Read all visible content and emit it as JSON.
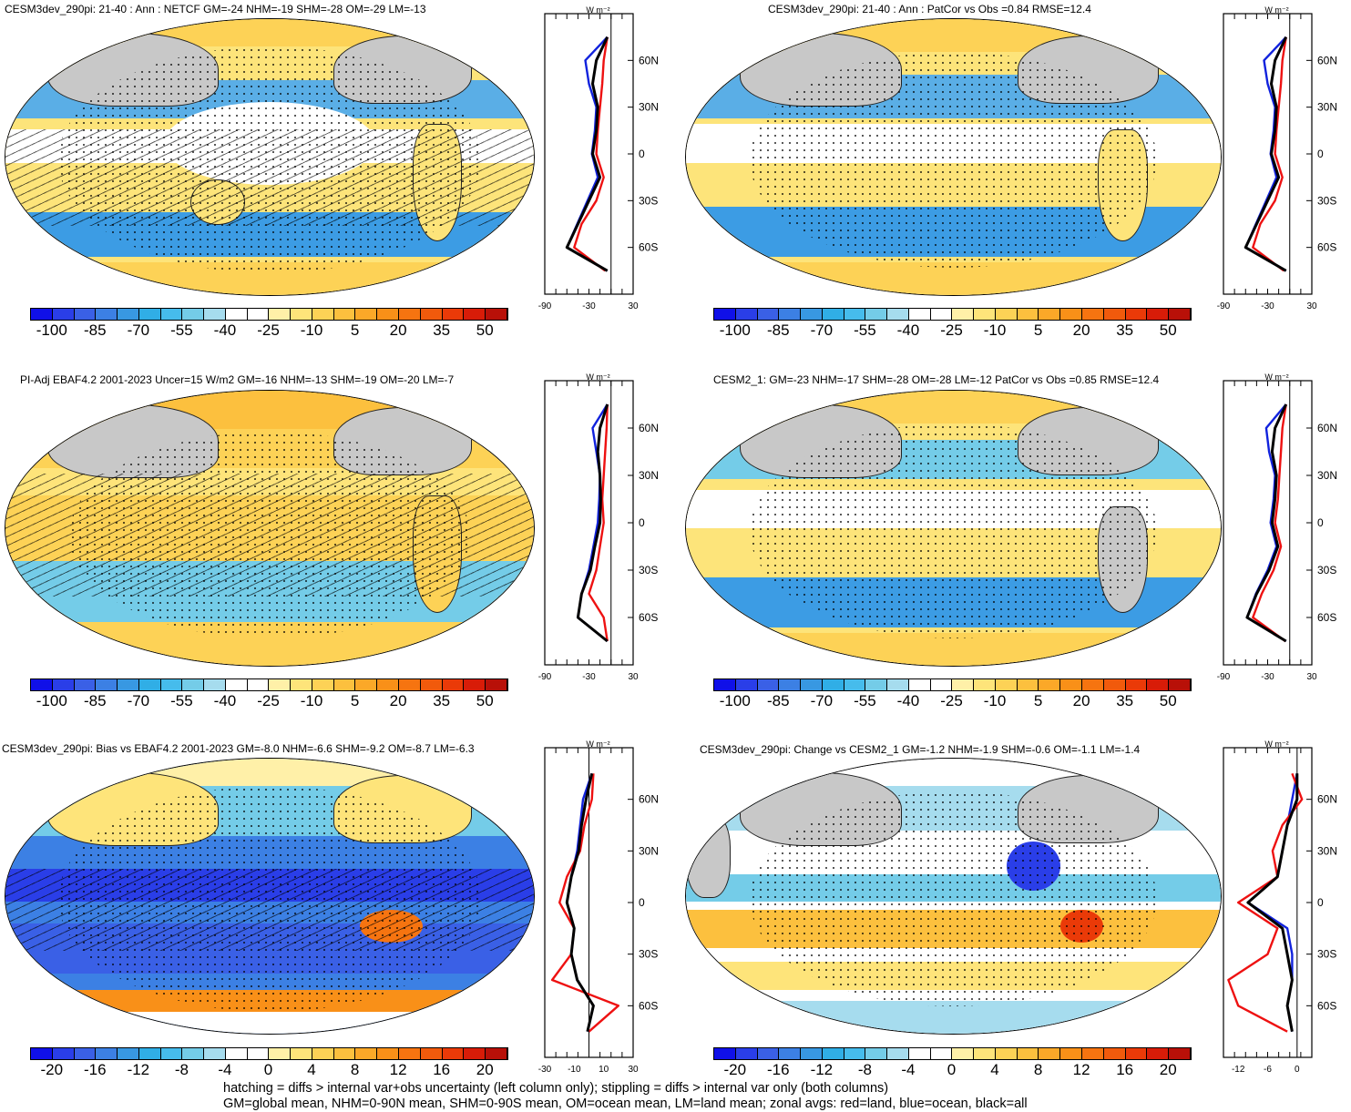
{
  "panels": [
    {
      "title": "CESM3dev_290pi: 21-40 : Ann : NETCF GM=-24 NHM=-19 SHM=-28 OM=-29 LM=-13"
    },
    {
      "title": "CESM3dev_290pi: 21-40 : Ann : PatCor vs Obs =0.84 RMSE=12.4"
    },
    {
      "title": "PI-Adj EBAF4.2 2001-2023 Uncer=15 W/m2 GM=-16 NHM=-13 SHM=-19 OM=-20 LM=-7"
    },
    {
      "title": "CESM2_1: GM=-23 NHM=-17 SHM=-28 OM=-28 LM=-12 PatCor vs Obs =0.85 RMSE=12.4"
    },
    {
      "title": "CESM3dev_290pi: Bias vs EBAF4.2 2001-2023 GM=-8.0 NHM=-6.6 SHM=-9.2 OM=-8.7 LM=-6.3"
    },
    {
      "title": "CESM3dev_290pi: Change vs CESM2_1 GM=-1.2 NHM=-1.9 SHM=-0.6 OM=-1.1 LM=-1.4"
    }
  ],
  "zonal": {
    "unit": "W m⁻²",
    "lat_labels": [
      "60N",
      "30N",
      "0",
      "30S",
      "60S"
    ],
    "x_ticks_full": [
      "-90",
      "-30",
      "30"
    ],
    "x_ticks_bias": [
      "-30",
      "-10",
      "10",
      "30"
    ],
    "x_ticks_change": [
      "-12",
      "-6",
      "0"
    ],
    "colors": {
      "land": "#ee1111",
      "ocean": "#1122dd",
      "all": "#000000"
    }
  },
  "colorbar_full": {
    "labels": [
      "-100",
      "-85",
      "-70",
      "-55",
      "-40",
      "-25",
      "-10",
      "5",
      "20",
      "35",
      "50"
    ],
    "colors": [
      "#1010e8",
      "#2a3ee8",
      "#3a60e6",
      "#3c80e4",
      "#3898e2",
      "#30aee6",
      "#46bcec",
      "#74cce8",
      "#a6dcee",
      "#ffffff",
      "#ffffff",
      "#fff0a8",
      "#fee47a",
      "#fdd256",
      "#fcc03e",
      "#fba828",
      "#f99018",
      "#f67410",
      "#f15a0c",
      "#ea3a08",
      "#d81c08",
      "#b81008"
    ]
  },
  "colorbar_diff": {
    "labels": [
      "-20",
      "-16",
      "-12",
      "-8",
      "-4",
      "0",
      "4",
      "8",
      "12",
      "16",
      "20"
    ],
    "colors": [
      "#1010e8",
      "#2a3ee8",
      "#3a60e6",
      "#3c80e4",
      "#3898e2",
      "#30aee6",
      "#46bcec",
      "#74cce8",
      "#a6dcee",
      "#ffffff",
      "#ffffff",
      "#fff0a8",
      "#fee47a",
      "#fdd256",
      "#fcc03e",
      "#fba828",
      "#f99018",
      "#f67410",
      "#f15a0c",
      "#ea3a08",
      "#d81c08",
      "#b81008"
    ]
  },
  "footnotes": {
    "line1": "hatching = diffs > internal var+obs uncertainty (left column only); stippling = diffs > internal var only (both columns)",
    "line2": "GM=global mean, NHM=0-90N mean, SHM=0-90S mean, OM=ocean mean, LM=land mean; zonal avgs: red=land, blue=ocean, black=all"
  },
  "chart_data": {
    "type": "heatmap",
    "variable": "NETCF",
    "panels": [
      {
        "title": "CESM3dev_290pi: 21-40 : Ann : NETCF",
        "GM": -24,
        "NHM": -19,
        "SHM": -28,
        "OM": -29,
        "LM": -13
      },
      {
        "title": "CESM3dev_290pi: 21-40 : Ann",
        "PatCor": 0.84,
        "RMSE": 12.4
      },
      {
        "title": "PI-Adj EBAF4.2 2001-2023",
        "Uncer": 15,
        "GM": -16,
        "NHM": -13,
        "SHM": -19,
        "OM": -20,
        "LM": -7
      },
      {
        "title": "CESM2_1",
        "GM": -23,
        "NHM": -17,
        "SHM": -28,
        "OM": -28,
        "LM": -12,
        "PatCor": 0.85,
        "RMSE": 12.4
      },
      {
        "title": "CESM3dev_290pi: Bias vs EBAF4.2 2001-2023",
        "GM": -8.0,
        "NHM": -6.6,
        "SHM": -9.2,
        "OM": -8.7,
        "LM": -6.3
      },
      {
        "title": "CESM3dev_290pi: Change vs CESM2_1",
        "GM": -1.2,
        "NHM": -1.9,
        "SHM": -0.6,
        "OM": -1.1,
        "LM": -1.4
      }
    ],
    "colorbar_levels_full": [
      -100,
      -85,
      -70,
      -55,
      -40,
      -25,
      -10,
      5,
      20,
      35,
      50
    ],
    "colorbar_levels_diff": [
      -20,
      -16,
      -12,
      -8,
      -4,
      0,
      4,
      8,
      12,
      16,
      20
    ],
    "zonal_lat": [
      75,
      60,
      45,
      30,
      15,
      0,
      -15,
      -30,
      -45,
      -60,
      -75
    ],
    "zonal_profiles": [
      {
        "all": [
          -5,
          -20,
          -25,
          -18,
          -20,
          -25,
          -15,
          -30,
          -45,
          -60,
          -5
        ],
        "land": [
          -5,
          -10,
          -12,
          -15,
          -18,
          -20,
          -10,
          -20,
          -40,
          -50,
          -8
        ],
        "ocean": [
          -5,
          -35,
          -30,
          -20,
          -22,
          -26,
          -18,
          -32,
          -46,
          -60,
          -5
        ]
      },
      {
        "all": [
          -5,
          -20,
          -25,
          -18,
          -20,
          -25,
          -15,
          -30,
          -45,
          -60,
          -5
        ],
        "land": [
          -5,
          -10,
          -12,
          -15,
          -18,
          -20,
          -10,
          -20,
          -40,
          -50,
          -8
        ],
        "ocean": [
          -5,
          -35,
          -30,
          -20,
          -22,
          -26,
          -18,
          -32,
          -46,
          -60,
          -5
        ]
      },
      {
        "all": [
          -5,
          -15,
          -18,
          -15,
          -14,
          -15,
          -22,
          -28,
          -40,
          -45,
          -5
        ],
        "land": [
          -5,
          -6,
          -8,
          -10,
          -12,
          -10,
          -15,
          -20,
          -30,
          -10,
          -5
        ],
        "ocean": [
          -5,
          -25,
          -20,
          -15,
          -16,
          -18,
          -24,
          -30,
          -40,
          -45,
          -5
        ]
      },
      {
        "all": [
          -5,
          -20,
          -24,
          -18,
          -20,
          -24,
          -16,
          -28,
          -45,
          -58,
          -5
        ],
        "land": [
          -5,
          -10,
          -12,
          -14,
          -16,
          -20,
          -12,
          -22,
          -38,
          -50,
          -6
        ],
        "ocean": [
          -5,
          -32,
          -28,
          -20,
          -22,
          -26,
          -18,
          -30,
          -46,
          -58,
          -5
        ]
      },
      {
        "all": [
          2,
          -2,
          -5,
          -7,
          -12,
          -15,
          -10,
          -12,
          -8,
          3,
          -1
        ],
        "land": [
          3,
          2,
          -3,
          -6,
          -15,
          -20,
          -10,
          -12,
          -25,
          20,
          0
        ],
        "ocean": [
          2,
          -4,
          -6,
          -8,
          -12,
          -15,
          -10,
          -12,
          -8,
          3,
          -1
        ]
      },
      {
        "all": [
          0,
          0,
          -2,
          -3,
          -4,
          -10,
          -3,
          -2,
          -1,
          -2,
          -1
        ],
        "land": [
          -1,
          1,
          -3,
          -5,
          -4,
          -12,
          -4,
          -6,
          -14,
          -12,
          -2
        ],
        "ocean": [
          0,
          -1,
          -2,
          -3,
          -4,
          -10,
          -2,
          -1,
          -1,
          -2,
          -1
        ]
      }
    ]
  }
}
